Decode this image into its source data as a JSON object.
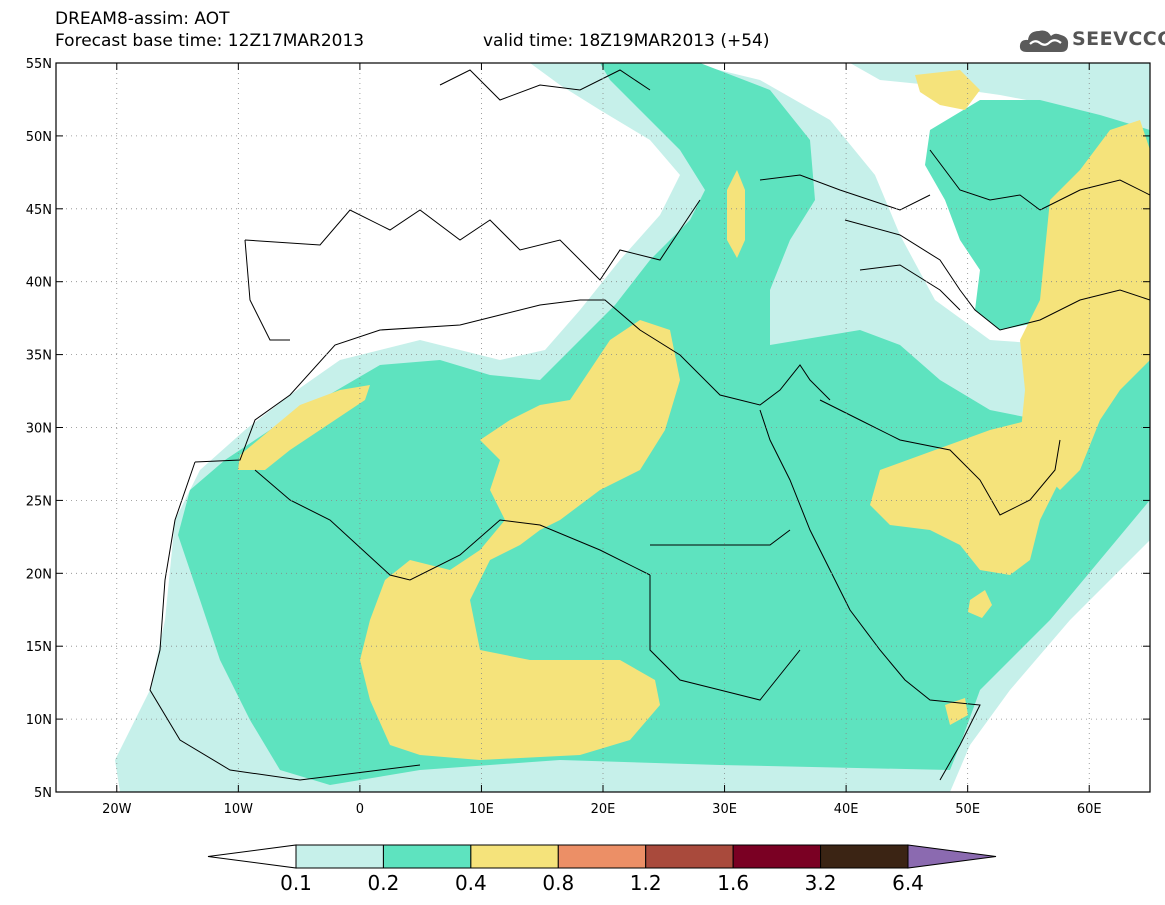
{
  "header": {
    "title_line1": "DREAM8-assim: AOT",
    "base_time": "Forecast base time: 12Z17MAR2013",
    "valid_time": "valid time: 18Z19MAR2013 (+54)",
    "logo_text": "SEEVCCC"
  },
  "map": {
    "lon_range": [
      -25,
      65
    ],
    "lat_range": [
      5,
      55
    ],
    "grid": "dotted",
    "lat_ticks": [
      {
        "value": 55,
        "label": "55N"
      },
      {
        "value": 50,
        "label": "50N"
      },
      {
        "value": 45,
        "label": "45N"
      },
      {
        "value": 40,
        "label": "40N"
      },
      {
        "value": 35,
        "label": "35N"
      },
      {
        "value": 30,
        "label": "30N"
      },
      {
        "value": 25,
        "label": "25N"
      },
      {
        "value": 20,
        "label": "20N"
      },
      {
        "value": 15,
        "label": "15N"
      },
      {
        "value": 10,
        "label": "10N"
      },
      {
        "value": 5,
        "label": "5N"
      }
    ],
    "lon_ticks": [
      {
        "value": -20,
        "label": "20W"
      },
      {
        "value": -10,
        "label": "10W"
      },
      {
        "value": 0,
        "label": "0"
      },
      {
        "value": 10,
        "label": "10E"
      },
      {
        "value": 20,
        "label": "20E"
      },
      {
        "value": 30,
        "label": "30E"
      },
      {
        "value": 40,
        "label": "40E"
      },
      {
        "value": 50,
        "label": "50E"
      },
      {
        "value": 60,
        "label": "60E"
      }
    ]
  },
  "colorbar": {
    "colors": [
      "#ffffff",
      "#c6f0ea",
      "#5ee3bf",
      "#f5e37b",
      "#ec8f66",
      "#a94a3c",
      "#7a0023",
      "#3b2414",
      "#8b6ab0"
    ],
    "labels": [
      "0.1",
      "0.2",
      "0.4",
      "0.8",
      "1.2",
      "1.6",
      "3.2",
      "6.4"
    ]
  },
  "colors": {
    "level_0_1": "#c6f0ea",
    "level_0_2": "#5ee3bf",
    "level_0_4": "#f5e37b"
  }
}
